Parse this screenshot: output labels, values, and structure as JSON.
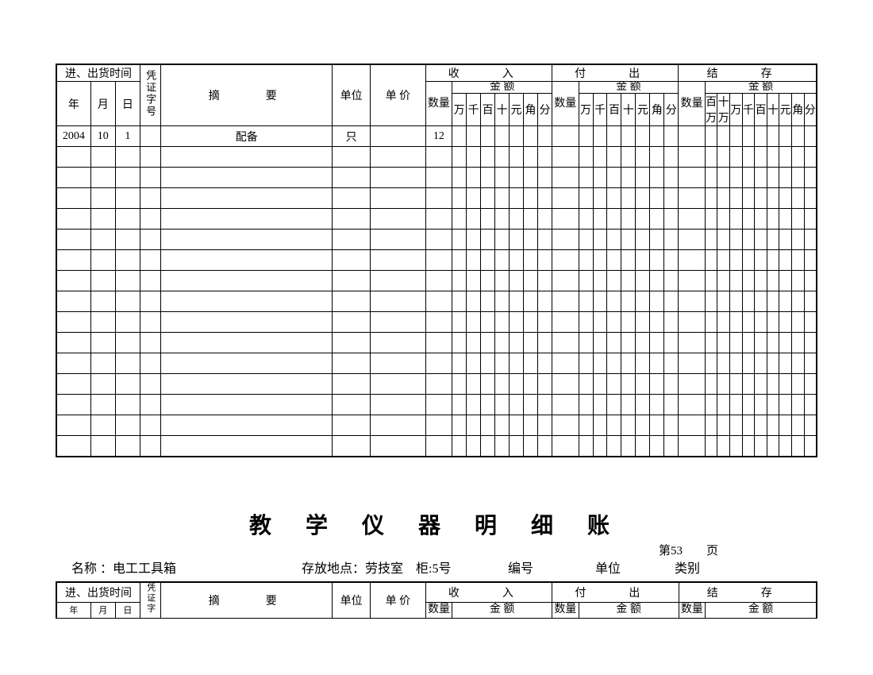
{
  "headers": {
    "time": "进、出货时间",
    "year": "年",
    "month": "月",
    "day": "日",
    "voucher": "凭证字号",
    "summary": "摘　　要",
    "unit": "单位",
    "price": "单 价",
    "income": "收　入",
    "expense": "付　出",
    "balance": "结　存",
    "qty": "数量",
    "amount": "金 额",
    "d_wan": "万",
    "d_qian": "千",
    "d_bai": "百",
    "d_shi": "十",
    "d_yuan": "元",
    "d_jiao": "角",
    "d_fen": "分",
    "d_baiwan": "百万",
    "d_shiwan": "十万"
  },
  "row1": {
    "year": "2004",
    "month": "10",
    "day": "1",
    "voucher": "",
    "summary": "配备",
    "unit": "只",
    "price": "",
    "income_qty": "12"
  },
  "page2": {
    "title": "教 学 仪 器 明 细 账",
    "name_label": "名称 ：",
    "name_value": "电工工具箱",
    "loc_label": "存放地点：",
    "loc_value": "劳技室　柜:5号",
    "num_label": "编号",
    "unit_label": "单位",
    "cat_label": "类别",
    "page_no": "第53　　页"
  },
  "layout": {
    "empty_rows": 15,
    "col_widths": {
      "year": 36,
      "month": 26,
      "day": 26,
      "voucher": 22,
      "summary": 180,
      "unit": 40,
      "price": 58,
      "qty": 28,
      "digit": 15,
      "digit_bal": 13
    },
    "border_color": "#000000",
    "bg": "#ffffff"
  }
}
